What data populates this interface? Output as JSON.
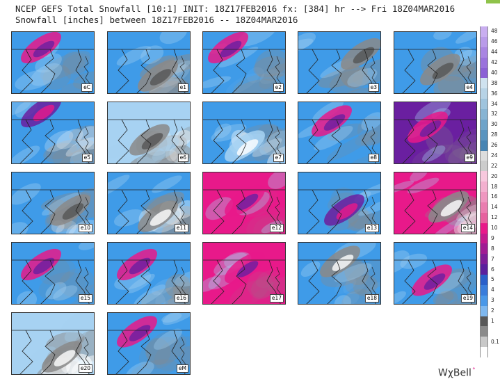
{
  "title": {
    "line1": "NCEP GEFS Total Snowfall [10:1] INIT: 18Z17FEB2016 fx: [384] hr --> Fri 18Z04MAR2016",
    "line2": "Snowfall [inches] between 18Z17FEB2016 -- 18Z04MAR2016"
  },
  "brand": {
    "name": "WχBell",
    "mark": "°"
  },
  "colors": {
    "magenta": "#e8198a",
    "purple": "#6a1fa0",
    "blue": "#3f9be8",
    "light_blue": "#a7d2f2",
    "gray": "#8a8a8a",
    "dark_gray": "#555555",
    "white": "#ffffff"
  },
  "panels": [
    {
      "label": "eC"
    },
    {
      "label": "e1"
    },
    {
      "label": "e2"
    },
    {
      "label": "e3"
    },
    {
      "label": "e4"
    },
    {
      "label": "e5"
    },
    {
      "label": "e6"
    },
    {
      "label": "e7"
    },
    {
      "label": "e8"
    },
    {
      "label": "e9"
    },
    {
      "label": "e10"
    },
    {
      "label": "e11"
    },
    {
      "label": "e12"
    },
    {
      "label": "e13"
    },
    {
      "label": "e14"
    },
    {
      "label": "e15"
    },
    {
      "label": "e16"
    },
    {
      "label": "e17"
    },
    {
      "label": "e18"
    },
    {
      "label": "e19"
    },
    {
      "label": "e20"
    },
    {
      "label": "eM"
    }
  ],
  "colorbar": {
    "units": "inches",
    "levels": [
      {
        "label": "48",
        "color": "#c9aef0"
      },
      {
        "label": "46",
        "color": "#b99be9"
      },
      {
        "label": "44",
        "color": "#a985e2"
      },
      {
        "label": "42",
        "color": "#9a72dc"
      },
      {
        "label": "40",
        "color": "#8b60d5"
      },
      {
        "label": "38",
        "color": "#cfe2ef"
      },
      {
        "label": "36",
        "color": "#b7d3e6"
      },
      {
        "label": "34",
        "color": "#9fc4dd"
      },
      {
        "label": "32",
        "color": "#87b4d3"
      },
      {
        "label": "30",
        "color": "#6ea3c9"
      },
      {
        "label": "28",
        "color": "#5a94bf"
      },
      {
        "label": "26",
        "color": "#4784b3"
      },
      {
        "label": "24",
        "color": "#dddddd"
      },
      {
        "label": "22",
        "color": "#cccccc"
      },
      {
        "label": "20",
        "color": "#f7c8dd"
      },
      {
        "label": "18",
        "color": "#f3b0cf"
      },
      {
        "label": "16",
        "color": "#ef97c0"
      },
      {
        "label": "14",
        "color": "#ea7db0"
      },
      {
        "label": "12",
        "color": "#e6629f"
      },
      {
        "label": "10",
        "color": "#e8198a"
      },
      {
        "label": "9",
        "color": "#c41a8e"
      },
      {
        "label": "8",
        "color": "#a01c93"
      },
      {
        "label": "7",
        "color": "#7d1e98"
      },
      {
        "label": "6",
        "color": "#5b209d"
      },
      {
        "label": "5",
        "color": "#2a5fc9"
      },
      {
        "label": "4",
        "color": "#3a7ddb"
      },
      {
        "label": "3",
        "color": "#4a98e8"
      },
      {
        "label": "2",
        "color": "#7fb8ef"
      },
      {
        "label": "1",
        "color": "#585858"
      },
      {
        "label": "",
        "color": "#8a8a8a"
      },
      {
        "label": "0.1",
        "color": "#c8c8c8"
      },
      {
        "label": "",
        "color": "#ffffff"
      }
    ]
  }
}
